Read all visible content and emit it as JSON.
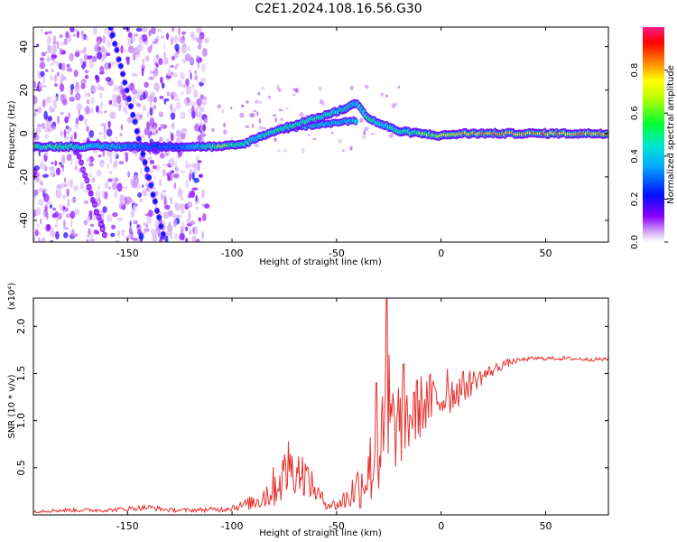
{
  "title": "C2E1.2024.108.16.56.G30",
  "chart_data": [
    {
      "type": "heatmap",
      "xlabel": "Height of straight line (km)",
      "ylabel": "Frequency (Hz)",
      "xlim": [
        -195,
        80
      ],
      "ylim": [
        -50,
        49
      ],
      "xticks": [
        -150,
        -100,
        -50,
        0,
        50
      ],
      "yticks": [
        -40,
        -20,
        0,
        20,
        40
      ],
      "grid": false,
      "colorbar": {
        "label": "Normalized spectral amplitude",
        "range": [
          0,
          1
        ],
        "ticks": [
          "0.0",
          "0.2",
          "0.4",
          "0.6",
          "0.8"
        ],
        "colors": [
          "#ffffff",
          "#c89bf4",
          "#7a00ff",
          "#0000ff",
          "#00c8ff",
          "#00ff40",
          "#ffff00",
          "#ff8000",
          "#ff0000",
          "#ff1a88"
        ]
      },
      "main_track": [
        {
          "x": -195,
          "y": -6,
          "amp": 0.6
        },
        {
          "x": -180,
          "y": -6,
          "amp": 0.65
        },
        {
          "x": -170,
          "y": -6,
          "amp": 0.5
        },
        {
          "x": -140,
          "y": -6,
          "amp": 0.35
        },
        {
          "x": -125,
          "y": -6,
          "amp": 0.35
        },
        {
          "x": -115,
          "y": -6,
          "amp": 0.45
        },
        {
          "x": -105,
          "y": -6,
          "amp": 0.75
        },
        {
          "x": -95,
          "y": -5,
          "amp": 0.55
        },
        {
          "x": -88,
          "y": -2,
          "amp": 0.5
        },
        {
          "x": -80,
          "y": 1,
          "amp": 0.55
        },
        {
          "x": -70,
          "y": 4,
          "amp": 0.6
        },
        {
          "x": -60,
          "y": 7,
          "amp": 0.6
        },
        {
          "x": -50,
          "y": 10,
          "amp": 0.55
        },
        {
          "x": -40,
          "y": 14,
          "amp": 0.45
        },
        {
          "x": -35,
          "y": 7,
          "amp": 0.6
        },
        {
          "x": -28,
          "y": 4,
          "amp": 0.5
        },
        {
          "x": -20,
          "y": 1,
          "amp": 0.55
        },
        {
          "x": -10,
          "y": 0,
          "amp": 0.7
        },
        {
          "x": 0,
          "y": -1,
          "amp": 0.75
        },
        {
          "x": 10,
          "y": 0,
          "amp": 0.85
        },
        {
          "x": 20,
          "y": 0,
          "amp": 0.9
        },
        {
          "x": 40,
          "y": 0,
          "amp": 0.9
        },
        {
          "x": 60,
          "y": 0,
          "amp": 0.9
        },
        {
          "x": 80,
          "y": 0,
          "amp": 0.9
        }
      ],
      "lower_branch": [
        {
          "x": -75,
          "y": 2
        },
        {
          "x": -60,
          "y": 4
        },
        {
          "x": -50,
          "y": 5
        },
        {
          "x": -40,
          "y": 6
        }
      ],
      "diagonal_tracks": [
        {
          "x1": -158,
          "y1": 49,
          "x2": -132,
          "y2": -50,
          "amp": 0.3
        },
        {
          "x1": -175,
          "y1": -5,
          "x2": -160,
          "y2": -50,
          "amp": 0.15
        }
      ]
    },
    {
      "type": "line",
      "xlabel": "Height of straight line (km)",
      "ylabel": "SNR (10 * v/v)",
      "y_multiplier": "(x10⁴)",
      "xlim": [
        -195,
        80
      ],
      "ylim": [
        0,
        2.3
      ],
      "xticks": [
        -150,
        -100,
        -50,
        0,
        50
      ],
      "yticks": [
        "0.5",
        "1.0",
        "1.5",
        "2.0"
      ],
      "grid": false,
      "series": [
        {
          "color": "#e8322f",
          "x": [
            -195,
            -180,
            -160,
            -140,
            -130,
            -120,
            -105,
            -95,
            -88,
            -82,
            -76,
            -70,
            -65,
            -60,
            -55,
            -50,
            -45,
            -40,
            -35,
            -30,
            -26,
            -22,
            -18,
            -14,
            -10,
            -6,
            -2,
            2,
            6,
            10,
            14,
            18,
            22,
            26,
            30,
            35,
            40,
            45,
            50,
            60,
            70,
            80
          ],
          "values": [
            0.04,
            0.05,
            0.05,
            0.08,
            0.05,
            0.05,
            0.06,
            0.1,
            0.15,
            0.25,
            0.4,
            0.5,
            0.42,
            0.25,
            0.12,
            0.1,
            0.18,
            0.3,
            0.45,
            0.65,
            0.85,
            0.95,
            1.0,
            1.05,
            1.15,
            1.2,
            1.22,
            1.25,
            1.3,
            1.35,
            1.4,
            1.45,
            1.5,
            1.55,
            1.6,
            1.63,
            1.65,
            1.66,
            1.66,
            1.66,
            1.65,
            1.65
          ],
          "noise": [
            0.02,
            0.02,
            0.02,
            0.03,
            0.02,
            0.02,
            0.03,
            0.05,
            0.1,
            0.2,
            0.28,
            0.28,
            0.22,
            0.12,
            0.06,
            0.06,
            0.14,
            0.25,
            0.38,
            0.5,
            0.6,
            0.5,
            0.45,
            0.4,
            0.35,
            0.3,
            0.28,
            0.25,
            0.2,
            0.18,
            0.15,
            0.1,
            0.08,
            0.06,
            0.05,
            0.03,
            0.02,
            0.02,
            0.02,
            0.02,
            0.02,
            0.02
          ]
        }
      ],
      "peaks": [
        {
          "x": -73,
          "y": 0.78
        },
        {
          "x": -26,
          "y": 2.3
        },
        {
          "x": -25,
          "y": 1.7
        },
        {
          "x": -31,
          "y": 1.4
        },
        {
          "x": -18,
          "y": 1.6
        },
        {
          "x": -13,
          "y": 1.3
        },
        {
          "x": -5,
          "y": 1.5
        },
        {
          "x": 3,
          "y": 1.55
        }
      ]
    }
  ]
}
